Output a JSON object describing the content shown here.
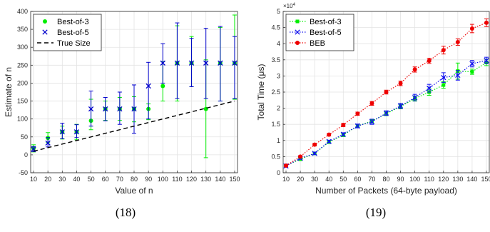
{
  "captions": [
    "(18)",
    "(19)"
  ],
  "chart_data": [
    {
      "type": "scatter",
      "xlabel": "Value of n",
      "ylabel": "Estimate of n",
      "xlim": [
        8,
        152
      ],
      "ylim": [
        -50,
        400
      ],
      "x_ticks": [
        10,
        20,
        30,
        40,
        50,
        60,
        70,
        80,
        90,
        100,
        110,
        120,
        130,
        140,
        150
      ],
      "y_ticks": [
        -50,
        0,
        50,
        100,
        150,
        200,
        250,
        300,
        350,
        400
      ],
      "grid": true,
      "legend_position": "top-left",
      "series": [
        {
          "name": "Best-of-3",
          "color": "#00ee00",
          "marker": "dot",
          "line": "none",
          "x": [
            10,
            20,
            30,
            40,
            50,
            60,
            70,
            80,
            90,
            100,
            110,
            120,
            130,
            140,
            150
          ],
          "y": [
            18,
            47,
            64,
            64,
            95,
            128,
            128,
            128,
            128,
            192,
            256,
            256,
            128,
            256,
            256
          ],
          "err_low": [
            8,
            34,
            44,
            42,
            70,
            96,
            96,
            92,
            98,
            150,
            150,
            190,
            -8,
            150,
            155
          ],
          "err_high": [
            28,
            62,
            80,
            85,
            155,
            150,
            160,
            162,
            142,
            260,
            360,
            330,
            265,
            355,
            390
          ]
        },
        {
          "name": "Best-of-5",
          "color": "#0000cc",
          "marker": "x",
          "line": "none",
          "x": [
            10,
            20,
            30,
            40,
            50,
            60,
            70,
            80,
            90,
            100,
            110,
            120,
            130,
            140,
            150
          ],
          "y": [
            16,
            33,
            64,
            64,
            128,
            128,
            128,
            128,
            192,
            256,
            256,
            256,
            256,
            256,
            256
          ],
          "err_low": [
            9,
            22,
            45,
            48,
            80,
            95,
            85,
            60,
            100,
            200,
            157,
            190,
            157,
            150,
            157
          ],
          "err_high": [
            23,
            48,
            88,
            84,
            178,
            160,
            175,
            195,
            258,
            310,
            368,
            325,
            353,
            358,
            330
          ]
        },
        {
          "name": "True Size",
          "color": "#000000",
          "marker": "none",
          "line": "dashed",
          "x": [
            10,
            150
          ],
          "y": [
            10,
            150
          ]
        }
      ]
    },
    {
      "type": "line",
      "xlabel": "Number of Packets (64-byte payload)",
      "ylabel": "Total Time (μs)",
      "y_exponent_label": "×10",
      "y_exponent_power": "4",
      "xlim": [
        8,
        152
      ],
      "ylim": [
        0,
        5
      ],
      "x_ticks": [
        10,
        20,
        30,
        40,
        50,
        60,
        70,
        80,
        90,
        100,
        110,
        120,
        130,
        140,
        150
      ],
      "y_ticks": [
        0,
        0.5,
        1,
        1.5,
        2,
        2.5,
        3,
        3.5,
        4,
        4.5,
        5
      ],
      "y_tick_labels": [
        "0",
        "0.5",
        "1",
        "1.5",
        "2",
        "2.5",
        "3",
        "3.5",
        "4",
        "4.5",
        "5"
      ],
      "grid": true,
      "legend_position": "top-left",
      "series": [
        {
          "name": "Best-of-3",
          "color": "#00ee00",
          "marker": "square",
          "line": "dotted",
          "x": [
            10,
            20,
            30,
            40,
            50,
            60,
            70,
            80,
            90,
            100,
            110,
            120,
            130,
            140,
            150
          ],
          "y": [
            0.22,
            0.42,
            0.6,
            0.95,
            1.17,
            1.45,
            1.6,
            1.83,
            2.05,
            2.3,
            2.5,
            2.72,
            3.15,
            3.13,
            3.42
          ],
          "err": [
            0.03,
            0.03,
            0.04,
            0.04,
            0.05,
            0.05,
            0.06,
            0.06,
            0.07,
            0.08,
            0.1,
            0.1,
            0.25,
            0.08,
            0.1
          ]
        },
        {
          "name": "Best-of-5",
          "color": "#1010ee",
          "marker": "x",
          "line": "dotted",
          "x": [
            10,
            20,
            30,
            40,
            50,
            60,
            70,
            80,
            90,
            100,
            110,
            120,
            130,
            140,
            150
          ],
          "y": [
            0.21,
            0.45,
            0.6,
            0.97,
            1.19,
            1.45,
            1.58,
            1.85,
            2.07,
            2.33,
            2.62,
            2.95,
            3.02,
            3.38,
            3.48
          ],
          "err": [
            0.03,
            0.03,
            0.04,
            0.04,
            0.05,
            0.06,
            0.08,
            0.07,
            0.08,
            0.1,
            0.12,
            0.15,
            0.15,
            0.1,
            0.1
          ]
        },
        {
          "name": "BEB",
          "color": "#ee0000",
          "marker": "dot",
          "line": "dotted",
          "x": [
            10,
            20,
            30,
            40,
            50,
            60,
            70,
            80,
            90,
            100,
            110,
            120,
            130,
            140,
            150
          ],
          "y": [
            0.22,
            0.5,
            0.87,
            1.18,
            1.48,
            1.83,
            2.15,
            2.5,
            2.77,
            3.2,
            3.47,
            3.8,
            4.05,
            4.47,
            4.65
          ],
          "err": [
            0.03,
            0.03,
            0.04,
            0.04,
            0.05,
            0.05,
            0.06,
            0.06,
            0.07,
            0.08,
            0.08,
            0.12,
            0.1,
            0.13,
            0.12
          ]
        }
      ]
    }
  ]
}
